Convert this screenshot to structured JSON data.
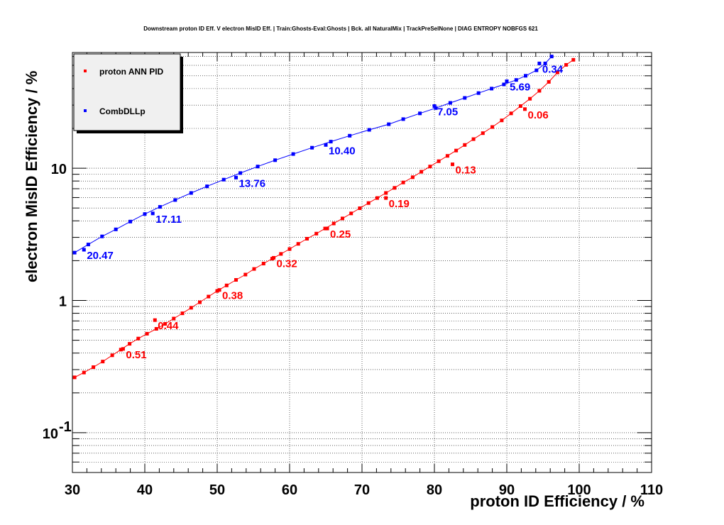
{
  "chart_data": {
    "type": "line",
    "title": "Downstream proton ID Eff. V electron MisID Eff. | Train:Ghosts-Eval:Ghosts | Bck. all NaturalMix | TrackPreSelNone | DIAG ENTROPY NOBFGS 621",
    "xlabel": "proton ID Efficiency / %",
    "ylabel": "electron MisID Efficiency / %",
    "xlim": [
      30,
      110
    ],
    "ylim": [
      0.05,
      75
    ],
    "y_scale": "log",
    "x_ticks": [
      "30",
      "40",
      "50",
      "60",
      "70",
      "80",
      "90",
      "100",
      "110"
    ],
    "y_ticks": [
      {
        "value": 0.1,
        "base": "10",
        "exp": "-1"
      },
      {
        "value": 1,
        "base": "1",
        "exp": ""
      },
      {
        "value": 10,
        "base": "10",
        "exp": ""
      }
    ],
    "grid": true,
    "legend_position": "top-left",
    "series": [
      {
        "name": "proton ANN PID",
        "color": "#ff0000",
        "x": [
          30.3,
          31.6,
          32.9,
          34.2,
          35.5,
          36.7,
          37.9,
          39.1,
          40.3,
          41.6,
          42.8,
          44.0,
          45.2,
          46.4,
          47.6,
          48.8,
          50.0,
          51.3,
          52.6,
          53.9,
          55.1,
          56.4,
          57.6,
          58.8,
          60.0,
          61.2,
          62.4,
          63.7,
          64.9,
          66.1,
          67.3,
          68.5,
          69.7,
          70.9,
          72.1,
          73.3,
          74.5,
          75.7,
          77.0,
          78.2,
          79.4,
          80.6,
          81.8,
          83.0,
          84.2,
          85.4,
          86.7,
          88.0,
          89.3,
          90.6,
          91.9,
          93.2,
          94.5,
          95.8,
          97.0,
          98.2,
          99.2
        ],
        "y": [
          0.262,
          0.285,
          0.313,
          0.345,
          0.385,
          0.425,
          0.47,
          0.515,
          0.56,
          0.61,
          0.665,
          0.73,
          0.8,
          0.88,
          0.97,
          1.07,
          1.18,
          1.3,
          1.43,
          1.57,
          1.73,
          1.9,
          2.07,
          2.25,
          2.45,
          2.68,
          2.93,
          3.2,
          3.5,
          3.82,
          4.17,
          4.55,
          4.98,
          5.45,
          5.95,
          6.5,
          7.1,
          7.8,
          8.55,
          9.4,
          10.3,
          11.3,
          12.4,
          13.6,
          15.0,
          16.6,
          18.4,
          20.5,
          23.0,
          26.0,
          29.5,
          33.5,
          38.5,
          45.0,
          53.0,
          60.5,
          66.0
        ],
        "labels": [
          {
            "x": 37.0,
            "y": 0.43,
            "text": "0.51"
          },
          {
            "x": 41.4,
            "y": 0.71,
            "text": "0.44"
          },
          {
            "x": 50.3,
            "y": 1.2,
            "text": "0.38"
          },
          {
            "x": 57.8,
            "y": 2.1,
            "text": "0.32"
          },
          {
            "x": 65.2,
            "y": 3.5,
            "text": "0.25"
          },
          {
            "x": 73.3,
            "y": 5.95,
            "text": "0.19"
          },
          {
            "x": 82.5,
            "y": 10.7,
            "text": "0.13"
          },
          {
            "x": 92.5,
            "y": 28.0,
            "text": "0.06"
          }
        ]
      },
      {
        "name": "CombDLLp",
        "color": "#0000ff",
        "x": [
          30.3,
          32.2,
          34.1,
          36.0,
          38.0,
          40.0,
          42.1,
          44.2,
          46.4,
          48.6,
          50.9,
          53.2,
          55.6,
          58.0,
          60.5,
          63.1,
          65.7,
          68.3,
          71.0,
          73.7,
          75.7,
          78.0,
          80.2,
          82.2,
          84.2,
          86.1,
          87.9,
          89.6,
          91.3,
          92.6,
          94.1,
          95.3,
          96.2
        ],
        "y": [
          2.3,
          2.65,
          3.05,
          3.45,
          3.95,
          4.5,
          5.1,
          5.75,
          6.5,
          7.3,
          8.2,
          9.2,
          10.3,
          11.5,
          12.8,
          14.3,
          15.9,
          17.6,
          19.5,
          21.5,
          23.5,
          26.0,
          28.5,
          31.2,
          34.0,
          37.0,
          40.0,
          43.0,
          46.5,
          50.0,
          55.0,
          62.0,
          70.0
        ],
        "labels": [
          {
            "x": 31.6,
            "y": 2.42,
            "text": "20.47"
          },
          {
            "x": 41.1,
            "y": 4.55,
            "text": "17.11"
          },
          {
            "x": 52.6,
            "y": 8.5,
            "text": "13.76"
          },
          {
            "x": 65.0,
            "y": 15.0,
            "text": "10.40"
          },
          {
            "x": 80.0,
            "y": 29.5,
            "text": "7.05"
          },
          {
            "x": 90.0,
            "y": 45.5,
            "text": "5.69"
          },
          {
            "x": 94.5,
            "y": 62.0,
            "text": "0.34"
          }
        ]
      }
    ]
  }
}
